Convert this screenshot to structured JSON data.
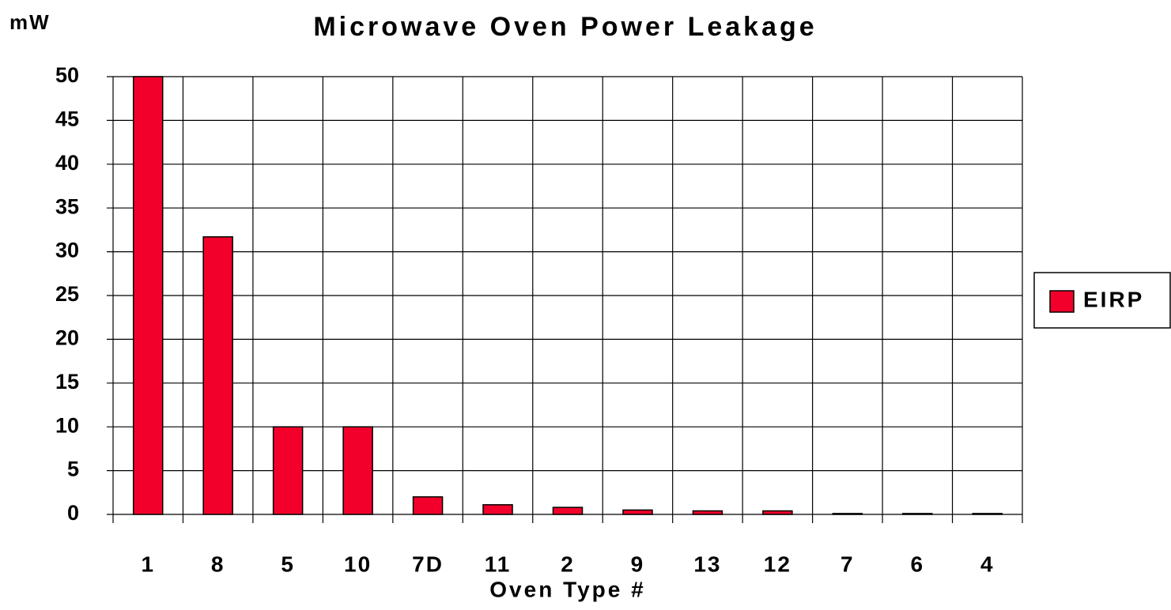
{
  "chart_data": {
    "type": "bar",
    "title": "Microwave Oven Power Leakage",
    "y_label": "mW",
    "x_label": "Oven Type #",
    "categories": [
      "1",
      "8",
      "5",
      "10",
      "7D",
      "11",
      "2",
      "9",
      "13",
      "12",
      "7",
      "6",
      "4"
    ],
    "series": [
      {
        "name": "EIRP",
        "color": "#f2002b",
        "values": [
          50,
          31.7,
          10,
          10,
          2,
          1.1,
          0.8,
          0.5,
          0.4,
          0.4,
          0.1,
          0.1,
          0.1
        ]
      }
    ],
    "ylim": [
      0,
      50
    ],
    "yticks": [
      0,
      5,
      10,
      15,
      20,
      25,
      30,
      35,
      40,
      45,
      50
    ],
    "grid": true,
    "legend": "right"
  }
}
